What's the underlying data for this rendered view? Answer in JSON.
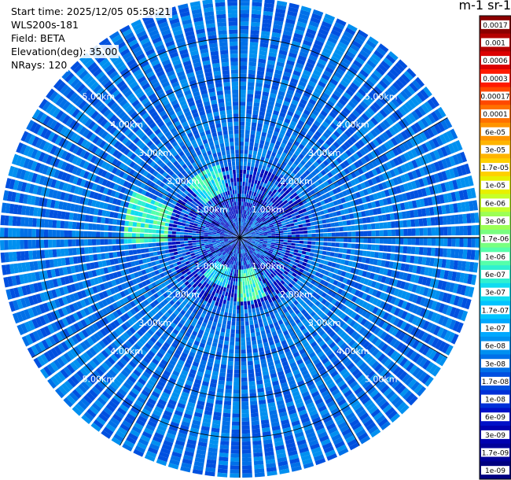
{
  "header": {
    "start_time": "Start time: 2025/12/05 05:58:21",
    "instrument": "WLS200s-181",
    "field": "Field: BETA",
    "elevation": "Elevation(deg): 35.00",
    "nrays": "NRays: 120"
  },
  "colorbar": {
    "unit_label": "m-1 sr-1",
    "ticks": [
      "0.0017",
      "0.001",
      "0.0006",
      "0.0003",
      "0.00017",
      "0.0001",
      "6e-05",
      "3e-05",
      "1.7e-05",
      "1e-05",
      "6e-06",
      "3e-06",
      "1.7e-06",
      "1e-06",
      "6e-07",
      "3e-07",
      "1.7e-07",
      "1e-07",
      "6e-08",
      "3e-08",
      "1.7e-08",
      "1e-08",
      "6e-09",
      "3e-09",
      "1.7e-09",
      "1e-09"
    ],
    "colors": [
      "#8b0000",
      "#b40000",
      "#dc0000",
      "#ff1a00",
      "#ff4800",
      "#ff7000",
      "#ff9400",
      "#ffb400",
      "#ffd000",
      "#e8f000",
      "#c6ff2a",
      "#9cff55",
      "#78ff80",
      "#55ffaa",
      "#30f0d0",
      "#10dcf0",
      "#00c4ff",
      "#00a8ff",
      "#0090f0",
      "#0070e8",
      "#0050e0",
      "#0030d8",
      "#0010c8",
      "#0000b0",
      "#00009a",
      "#000080"
    ]
  },
  "chart_data": {
    "type": "heatmap",
    "projection": "polar PPI",
    "rays": 120,
    "max_range_km": 6.0,
    "range_rings_km": [
      1,
      2,
      3,
      4,
      5
    ],
    "range_ring_labels": [
      "1.00km",
      "2.00km",
      "3.00km",
      "4.00km",
      "5.00km"
    ],
    "dominant_value": "3e-08",
    "features": [
      {
        "azimuth_deg": 280,
        "range_km": [
          1.8,
          2.9
        ],
        "value": "1.7e-06"
      },
      {
        "azimuth_deg": 330,
        "range_km": [
          1.2,
          1.9
        ],
        "value": "1e-06"
      },
      {
        "azimuth_deg": 170,
        "range_km": [
          0.8,
          1.6
        ],
        "value": "1.7e-06"
      },
      {
        "azimuth_deg": 210,
        "range_km": [
          0.8,
          1.3
        ],
        "value": "6e-07"
      }
    ]
  }
}
